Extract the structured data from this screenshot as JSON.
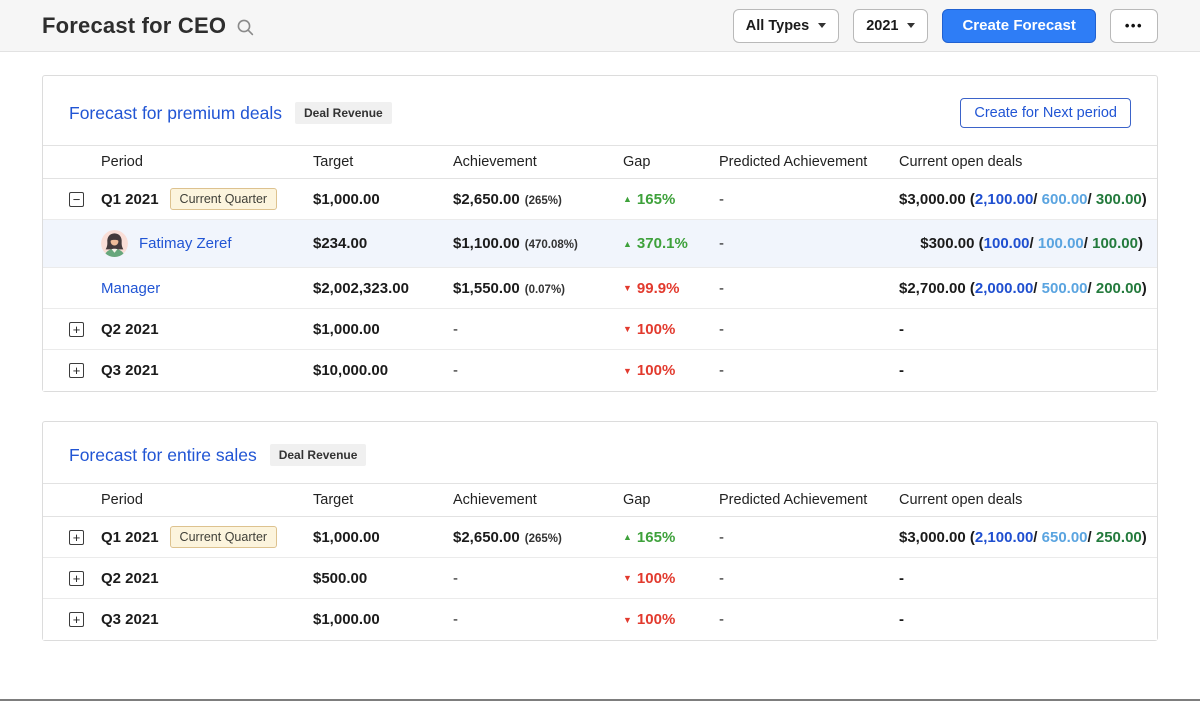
{
  "header": {
    "title": "Forecast for CEO",
    "type_filter": {
      "value": "All Types"
    },
    "year_filter": {
      "value": "2021"
    },
    "create_button_label": "Create Forecast",
    "more_label": "•••"
  },
  "columns": [
    "Period",
    "Target",
    "Achievement",
    "Gap",
    "Predicted Achievement",
    "Current open deals"
  ],
  "colors": {
    "accent_blue": "#2e7df6",
    "link_blue": "#2155d4",
    "gap_up_green": "#3ea13b",
    "gap_down_red": "#e23a2e",
    "open_deal_closing_blue": "#1f4fd0",
    "open_deal_pipeline_blue": "#5aa4e0",
    "open_deal_won_green": "#237a3c",
    "current_quarter_badge_bg": "#fcf4dd"
  },
  "cards": [
    {
      "title": "Forecast for premium deals",
      "badge": "Deal Revenue",
      "action_label": "Create for Next period",
      "rows": [
        {
          "expand": "minus",
          "period": "Q1 2021",
          "period_badge": "Current Quarter",
          "target": "$1,000.00",
          "achievement": "$2,650.00",
          "achievement_pct": "(265%)",
          "gap": "165%",
          "gap_dir": "up",
          "predicted": "-",
          "open_total": "$3,000.00",
          "open_parts": [
            "2,100.00",
            "600.00",
            "300.00"
          ]
        },
        {
          "avatar": "woman-avatar",
          "link": true,
          "highlight": true,
          "period": "Fatimay Zeref",
          "target": "$234.00",
          "achievement": "$1,100.00",
          "achievement_pct": "(470.08%)",
          "gap": "370.1%",
          "gap_dir": "up",
          "predicted": "-",
          "open_total": "$300.00",
          "open_parts": [
            "100.00",
            "100.00",
            "100.00"
          ]
        },
        {
          "link": true,
          "period": "Manager",
          "target": "$2,002,323.00",
          "achievement": "$1,550.00",
          "achievement_pct": "(0.07%)",
          "gap": "99.9%",
          "gap_dir": "down",
          "predicted": "-",
          "open_total": "$2,700.00",
          "open_parts": [
            "2,000.00",
            "500.00",
            "200.00"
          ]
        },
        {
          "expand": "plus",
          "period": "Q2 2021",
          "target": "$1,000.00",
          "achievement": "-",
          "gap": "100%",
          "gap_dir": "down",
          "predicted": "-",
          "open_total": "-"
        },
        {
          "expand": "plus",
          "period": "Q3 2021",
          "target": "$10,000.00",
          "achievement": "-",
          "gap": "100%",
          "gap_dir": "down",
          "predicted": "-",
          "open_total": "-"
        }
      ]
    },
    {
      "title": "Forecast for entire sales",
      "badge": "Deal Revenue",
      "rows": [
        {
          "expand": "plus",
          "period": "Q1 2021",
          "period_badge": "Current Quarter",
          "target": "$1,000.00",
          "achievement": "$2,650.00",
          "achievement_pct": "(265%)",
          "gap": "165%",
          "gap_dir": "up",
          "predicted": "-",
          "open_total": "$3,000.00",
          "open_parts": [
            "2,100.00",
            "650.00",
            "250.00"
          ]
        },
        {
          "expand": "plus",
          "period": "Q2 2021",
          "target": "$500.00",
          "achievement": "-",
          "gap": "100%",
          "gap_dir": "down",
          "predicted": "-",
          "open_total": "-"
        },
        {
          "expand": "plus",
          "period": "Q3 2021",
          "target": "$1,000.00",
          "achievement": "-",
          "gap": "100%",
          "gap_dir": "down",
          "predicted": "-",
          "open_total": "-"
        }
      ]
    }
  ]
}
